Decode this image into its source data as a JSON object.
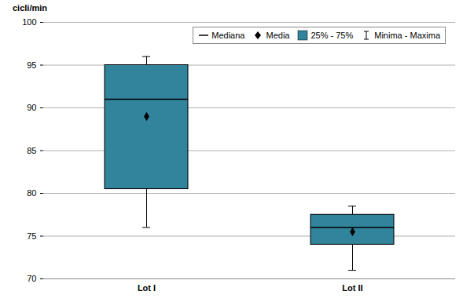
{
  "chart_data": {
    "type": "box",
    "y_label": "cicli/min",
    "categories": [
      "Lot I",
      "Lot II"
    ],
    "series": [
      {
        "name": "Mediana",
        "values": [
          91,
          76
        ],
        "line_style": "solid"
      },
      {
        "name": "Media",
        "values": [
          89,
          75.5
        ],
        "marker": "diamond"
      },
      {
        "name": "25% - 75%",
        "values": [
          [
            80.5,
            95
          ],
          [
            74,
            77.5
          ]
        ],
        "color": "#31849b"
      },
      {
        "name": "Minima - Maxima",
        "values": [
          [
            76,
            96
          ],
          [
            71,
            78.5
          ]
        ]
      }
    ],
    "ylim": [
      70,
      100
    ],
    "yticks": [
      70,
      75,
      80,
      85,
      90,
      95,
      100
    ],
    "grid": true,
    "legend": "top-right"
  }
}
